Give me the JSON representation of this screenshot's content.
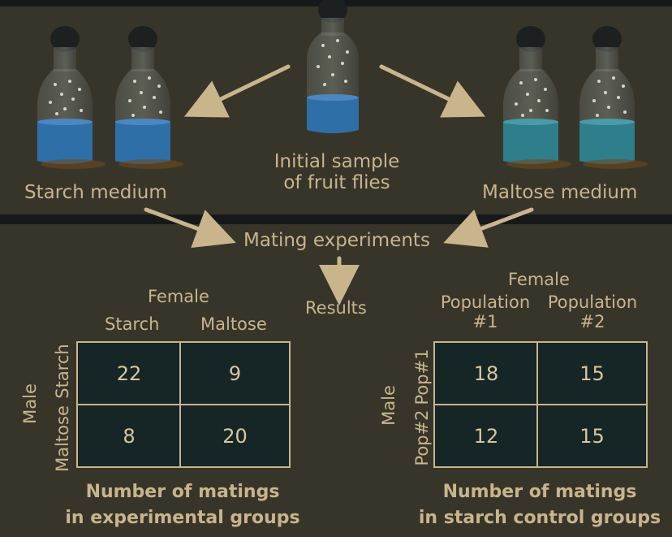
{
  "top": {
    "initial_sample": [
      "Initial sample",
      "of fruit flies"
    ],
    "starch_medium": "Starch medium",
    "maltose_medium": "Maltose medium"
  },
  "middle": {
    "mating_experiments": "Mating experiments",
    "results": "Results"
  },
  "experimental_table": {
    "col_header": "Female",
    "col_labels": [
      "Starch",
      "Maltose"
    ],
    "row_header": "Male",
    "row_labels": [
      "Starch",
      "Maltose"
    ],
    "values": [
      [
        "22",
        "9"
      ],
      [
        "8",
        "20"
      ]
    ],
    "caption": [
      "Number of matings",
      "in experimental groups"
    ]
  },
  "control_table": {
    "col_header": "Female",
    "col_labels": [
      [
        "Population",
        "#1"
      ],
      [
        "Population",
        "#2"
      ]
    ],
    "row_header": "Male",
    "row_labels": [
      "Pop#1",
      "Pop#2"
    ],
    "values": [
      [
        "18",
        "15"
      ],
      [
        "12",
        "15"
      ]
    ],
    "caption": [
      "Number of matings",
      "in starch control groups"
    ]
  },
  "colors": {
    "background": "#37352a",
    "divider": "#16191a",
    "text": "#c9b48c",
    "table_fill": "#162626",
    "blue_medium": "#2f6fa8",
    "teal_medium": "#2e7e8c"
  },
  "icons": [
    "bottle-icon",
    "arrow-icon"
  ]
}
